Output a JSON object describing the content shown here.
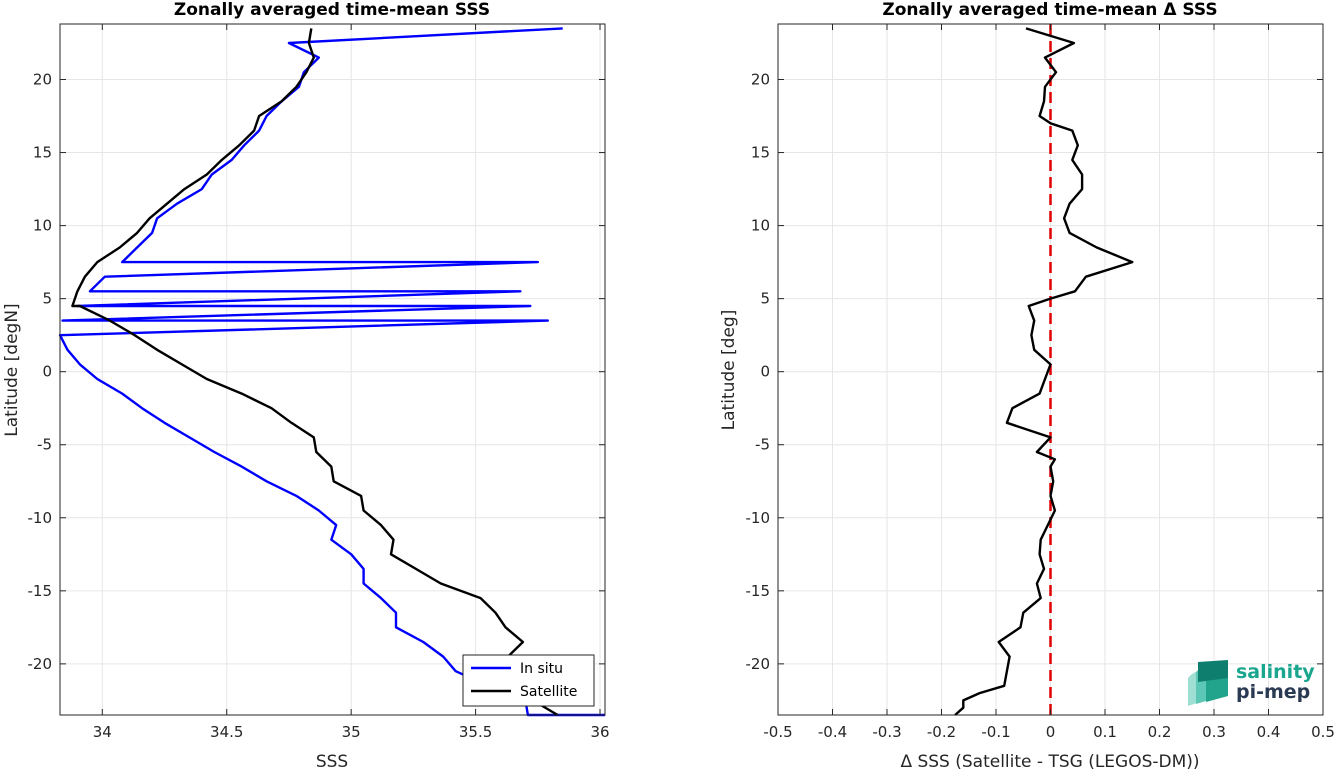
{
  "chart_data": [
    {
      "type": "line",
      "title": "Zonally averaged time-mean SSS",
      "xlabel": "SSS",
      "ylabel": "Latitude [degN]",
      "xlim": [
        33.83,
        36.02
      ],
      "ylim": [
        -23.5,
        23.8
      ],
      "xticks": [
        "34",
        "34.5",
        "35",
        "35.5",
        "36"
      ],
      "xtick_values": [
        34,
        34.5,
        35,
        35.5,
        36
      ],
      "yticks": [
        "20",
        "15",
        "10",
        "5",
        "0",
        "-5",
        "-10",
        "-15",
        "-20"
      ],
      "ytick_values": [
        20,
        15,
        10,
        5,
        0,
        -5,
        -10,
        -15,
        -20
      ],
      "grid": true,
      "legend_position": "bottom-right",
      "series": [
        {
          "name": "In situ",
          "color": "#0000ff",
          "x": [
            34.75,
            34.87,
            34.81,
            34.79,
            34.72,
            34.66,
            34.63,
            34.57,
            34.52,
            34.44,
            34.4,
            34.3,
            34.22,
            34.2,
            34.14,
            34.08,
            34.01,
            33.95,
            33.9,
            33.84,
            33.83,
            33.86,
            33.91,
            33.98,
            34.08,
            34.16,
            34.25,
            34.35,
            34.45,
            34.56,
            34.66,
            34.78,
            34.87,
            34.94,
            34.92,
            35.0,
            35.05,
            35.05,
            35.12,
            35.18,
            35.18,
            35.29,
            35.37,
            35.42,
            35.55,
            35.7,
            35.71,
            35.75,
            35.68,
            35.72,
            35.79,
            35.85,
            36.02
          ],
          "y": [
            22.5,
            21.5,
            20.5,
            19.5,
            18.5,
            17.5,
            16.5,
            15.5,
            14.5,
            13.5,
            12.5,
            11.5,
            10.5,
            9.5,
            8.5,
            7.5,
            6.5,
            5.5,
            4.5,
            3.5,
            2.5,
            1.5,
            0.5,
            -0.5,
            -1.5,
            -2.5,
            -3.5,
            -4.5,
            -5.5,
            -6.5,
            -7.5,
            -8.5,
            -9.5,
            -10.5,
            -11.5,
            -12.5,
            -13.5,
            -14.5,
            -15.5,
            -16.5,
            -17.5,
            -18.5,
            -19.5,
            -20.5,
            -21.5,
            -22.5,
            -23.5,
            7.5,
            5.5,
            4.5,
            3.5,
            23.5,
            -23.5
          ]
        },
        {
          "name": "Satellite",
          "color": "#000000",
          "x": [
            34.84,
            34.83,
            34.85,
            34.82,
            34.78,
            34.72,
            34.63,
            34.61,
            34.55,
            34.48,
            34.42,
            34.33,
            34.26,
            34.19,
            34.14,
            34.07,
            33.98,
            33.93,
            33.9,
            33.88,
            33.91,
            34.03,
            34.13,
            34.22,
            34.32,
            34.42,
            34.56,
            34.68,
            34.76,
            34.85,
            34.86,
            34.92,
            34.93,
            35.04,
            35.05,
            35.12,
            35.17,
            35.16,
            35.26,
            35.36,
            35.52,
            35.58,
            35.62,
            35.69,
            35.63,
            35.61,
            35.66,
            35.73,
            35.83
          ],
          "y": [
            23.5,
            22.5,
            21.5,
            20.5,
            19.5,
            18.5,
            17.5,
            16.5,
            15.5,
            14.5,
            13.5,
            12.5,
            11.5,
            10.5,
            9.5,
            8.5,
            7.5,
            6.5,
            5.5,
            4.5,
            4.5,
            3.5,
            2.5,
            1.5,
            0.5,
            -0.5,
            -1.5,
            -2.5,
            -3.5,
            -4.5,
            -5.5,
            -6.5,
            -7.5,
            -8.5,
            -9.5,
            -10.5,
            -11.5,
            -12.5,
            -13.5,
            -14.5,
            -15.5,
            -16.5,
            -17.5,
            -18.5,
            -19.5,
            -20.5,
            -21.5,
            -22.5,
            -23.5
          ]
        }
      ]
    },
    {
      "type": "line",
      "title": "Zonally averaged time-mean Δ SSS",
      "xlabel": "Δ SSS (Satellite - TSG (LEGOS-DM))",
      "ylabel": "Latitude [deg]",
      "xlim": [
        -0.5,
        0.5
      ],
      "ylim": [
        -23.5,
        23.8
      ],
      "xticks": [
        "-0.5",
        "-0.4",
        "-0.3",
        "-0.2",
        "-0.1",
        "0",
        "0.1",
        "0.2",
        "0.3",
        "0.4",
        "0.5"
      ],
      "xtick_values": [
        -0.5,
        -0.4,
        -0.3,
        -0.2,
        -0.1,
        0,
        0.1,
        0.2,
        0.3,
        0.4,
        0.5
      ],
      "yticks": [
        "20",
        "15",
        "10",
        "5",
        "0",
        "-5",
        "-10",
        "-15",
        "-20"
      ],
      "ytick_values": [
        20,
        15,
        10,
        5,
        0,
        -5,
        -10,
        -15,
        -20
      ],
      "grid": true,
      "reference_line": {
        "x": 0,
        "color": "#e00000",
        "style": "dashed"
      },
      "series": [
        {
          "name": "",
          "color": "#000000",
          "x": [
            -0.045,
            0.043,
            -0.01,
            0.01,
            -0.01,
            -0.012,
            -0.02,
            0.0,
            0.04,
            0.05,
            0.04,
            0.058,
            0.058,
            0.035,
            0.025,
            0.035,
            0.085,
            0.15,
            0.065,
            0.045,
            0.0,
            -0.04,
            -0.03,
            -0.035,
            -0.03,
            0.0,
            -0.01,
            -0.02,
            -0.07,
            -0.08,
            0.0,
            -0.025,
            0.008,
            0.0,
            0.005,
            0.0,
            0.008,
            -0.005,
            -0.018,
            -0.02,
            -0.012,
            -0.025,
            -0.018,
            -0.05,
            -0.055,
            -0.095,
            -0.075,
            -0.08,
            -0.085,
            -0.13,
            -0.16,
            -0.16,
            -0.175
          ],
          "y": [
            23.5,
            22.5,
            21.5,
            20.5,
            19.5,
            18.5,
            17.5,
            17.0,
            16.5,
            15.5,
            14.5,
            13.5,
            12.5,
            11.5,
            10.5,
            9.5,
            8.5,
            7.5,
            6.5,
            5.5,
            5.0,
            4.5,
            3.5,
            2.5,
            1.5,
            0.5,
            -0.5,
            -1.5,
            -2.5,
            -3.5,
            -4.5,
            -5.5,
            -6.0,
            -6.5,
            -7.5,
            -8.5,
            -9.5,
            -10.5,
            -11.5,
            -12.5,
            -13.5,
            -14.5,
            -15.5,
            -16.5,
            -17.5,
            -18.5,
            -19.5,
            -20.5,
            -21.5,
            -22.0,
            -22.5,
            -23.0,
            -23.5
          ]
        }
      ]
    }
  ],
  "legend": {
    "entries": [
      "In situ",
      "Satellite"
    ]
  },
  "logo": {
    "line1": "salinity",
    "line2": "pi-mep"
  }
}
